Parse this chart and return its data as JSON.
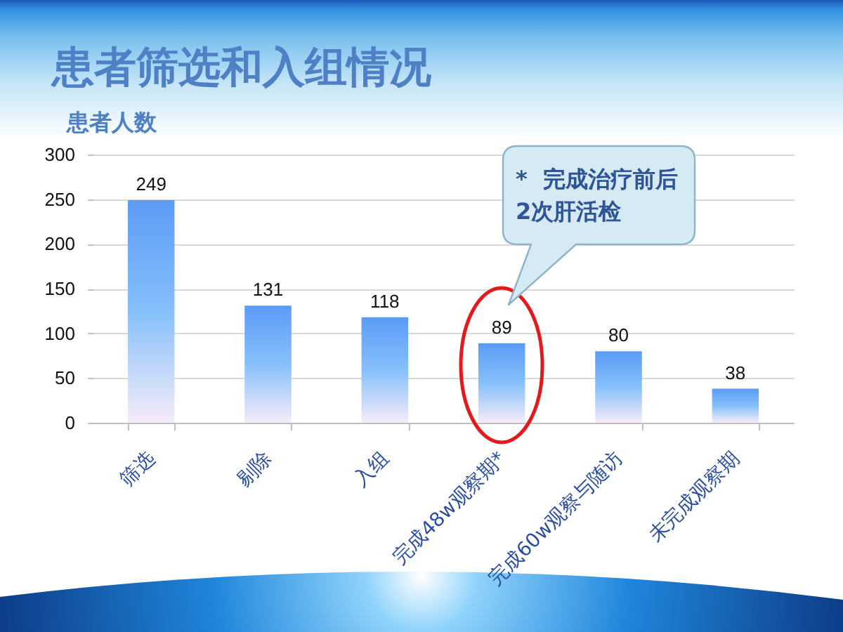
{
  "chart_data": {
    "type": "bar",
    "title": "患者筛选和入组情况",
    "ylabel": "患者人数",
    "categories": [
      "筛选",
      "剔除",
      "入组",
      "完成48w观察期*",
      "完成60w观察与随访",
      "未完成观察期"
    ],
    "values": [
      249,
      131,
      118,
      89,
      80,
      38
    ],
    "color": "#5b9bf6",
    "ylim": [
      0,
      300
    ],
    "yticks": [
      0,
      50,
      100,
      150,
      200,
      250,
      300
    ],
    "grid": true,
    "data_labels": true,
    "annotations": [
      "*  完成治疗前后\n2次肝活检"
    ]
  }
}
